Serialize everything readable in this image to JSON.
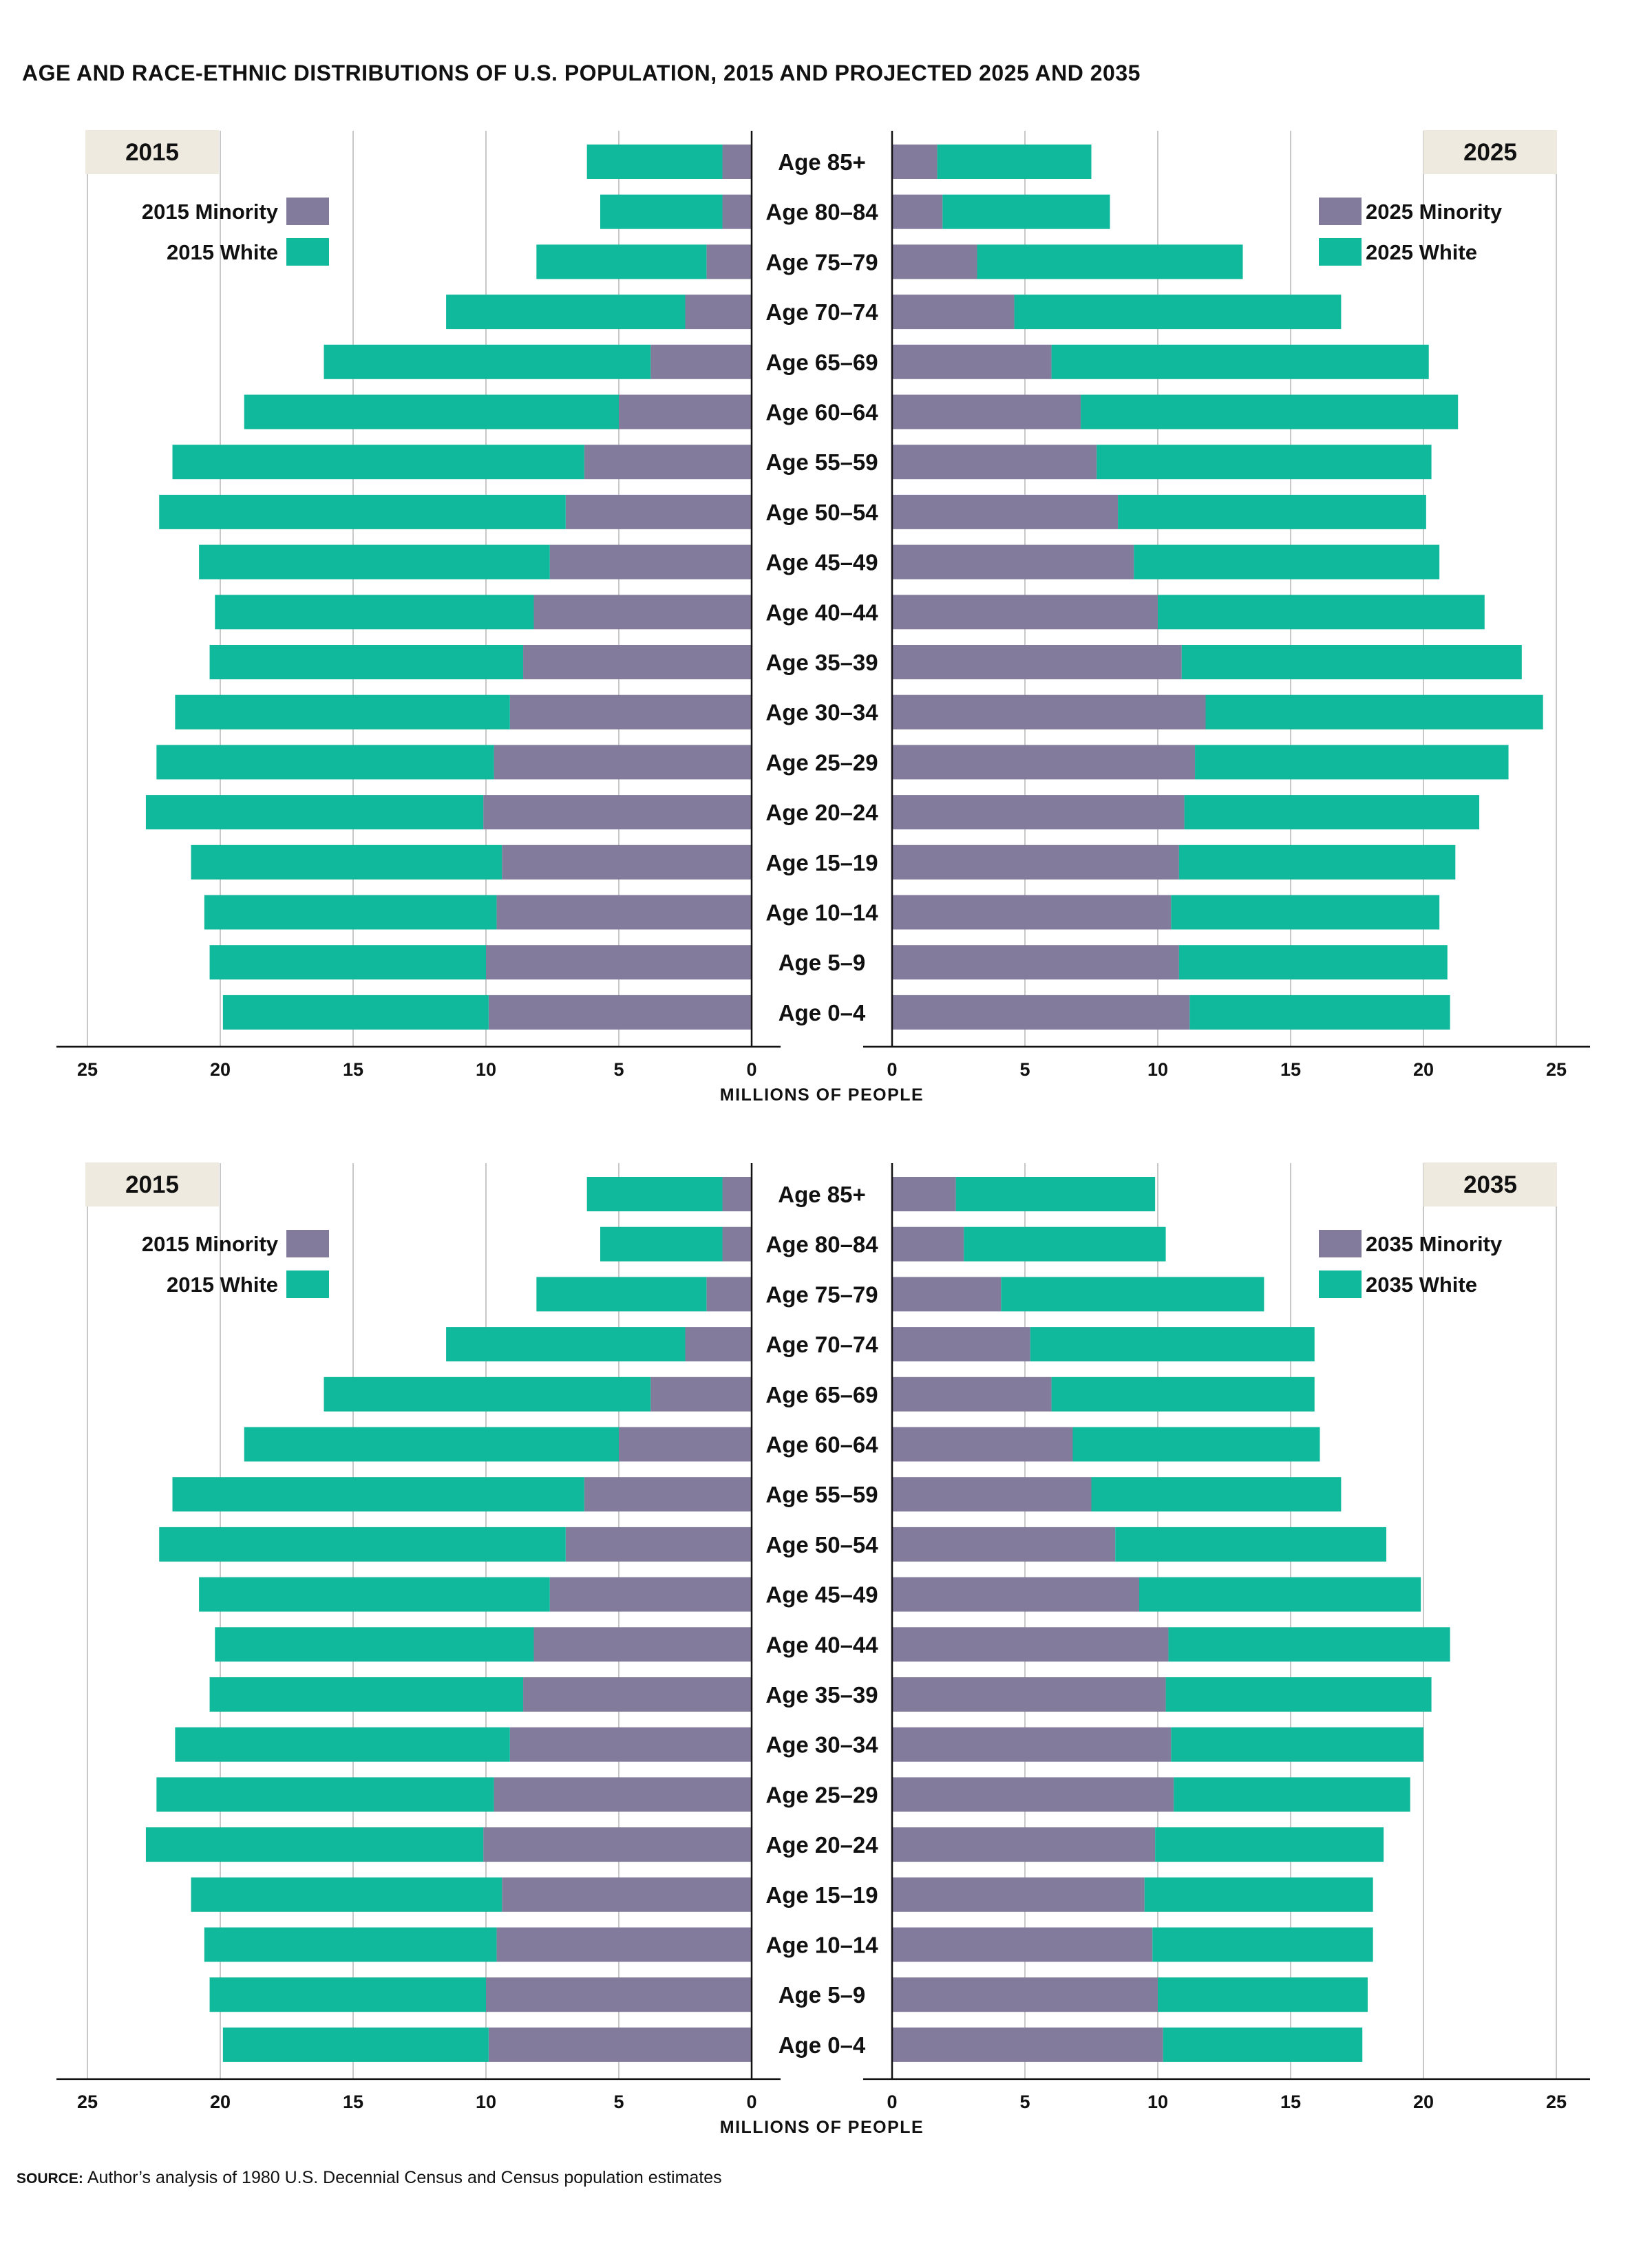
{
  "page": {
    "title": "AGE AND RACE-ETHNIC DISTRIBUTIONS OF U.S. POPULATION, 2015 AND PROJECTED 2025 AND 2035",
    "source_label": "SOURCE:",
    "source_text": "Author’s analysis of 1980 U.S. Decennial Census and Census population estimates"
  },
  "colors": {
    "minority": "#837b9c",
    "white": "#10b99b",
    "year_box": "#efeae0",
    "grid": "#c8c8c8",
    "axis": "#111111"
  },
  "chart_data": [
    {
      "type": "bar",
      "orientation": "horizontal",
      "layout": "population-pyramid",
      "xlabel": "MILLIONS OF PEOPLE",
      "xlim": [
        0,
        25
      ],
      "xticks": [
        "0",
        "5",
        "10",
        "15",
        "20",
        "25"
      ],
      "categories": [
        "Age 85+",
        "Age 80-84",
        "Age 75-79",
        "Age 70-74",
        "Age 65-69",
        "Age 60-64",
        "Age 55-59",
        "Age 50-54",
        "Age 45-49",
        "Age 40-44",
        "Age 35-39",
        "Age 30-34",
        "Age 25-29",
        "Age 20-24",
        "Age 15-19",
        "Age 10-14",
        "Age 5-9",
        "Age 0-4"
      ],
      "left": {
        "year": "2015",
        "series": [
          {
            "name": "2015 Minority",
            "values": [
              1.1,
              1.1,
              1.7,
              2.5,
              3.8,
              5.0,
              6.3,
              7.0,
              7.6,
              8.2,
              8.6,
              9.1,
              9.7,
              10.1,
              9.4,
              9.6,
              10.0,
              9.9
            ]
          },
          {
            "name": "2015 White",
            "values": [
              5.1,
              4.6,
              6.4,
              9.0,
              12.3,
              14.1,
              15.5,
              15.3,
              13.2,
              12.0,
              11.8,
              12.6,
              12.7,
              12.7,
              11.7,
              11.0,
              10.4,
              10.0
            ]
          }
        ]
      },
      "right": {
        "year": "2025",
        "series": [
          {
            "name": "2025 Minority",
            "values": [
              1.7,
              1.9,
              3.2,
              4.6,
              6.0,
              7.1,
              7.7,
              8.5,
              9.1,
              10.0,
              10.9,
              11.8,
              11.4,
              11.0,
              10.8,
              10.5,
              10.8,
              11.2
            ]
          },
          {
            "name": "2025 White",
            "values": [
              5.8,
              6.3,
              10.0,
              12.3,
              14.2,
              14.2,
              12.6,
              11.6,
              11.5,
              12.3,
              12.8,
              12.7,
              11.8,
              11.1,
              10.4,
              10.1,
              10.1,
              9.8
            ]
          }
        ]
      }
    },
    {
      "type": "bar",
      "orientation": "horizontal",
      "layout": "population-pyramid",
      "xlabel": "MILLIONS OF PEOPLE",
      "xlim": [
        0,
        25
      ],
      "xticks": [
        "0",
        "5",
        "10",
        "15",
        "20",
        "25"
      ],
      "categories": [
        "Age 85+",
        "Age 80-84",
        "Age 75-79",
        "Age 70-74",
        "Age 65-69",
        "Age 60-64",
        "Age 55-59",
        "Age 50-54",
        "Age 45-49",
        "Age 40-44",
        "Age 35-39",
        "Age 30-34",
        "Age 25-29",
        "Age 20-24",
        "Age 15-19",
        "Age 10-14",
        "Age 5-9",
        "Age 0-4"
      ],
      "left": {
        "year": "2015",
        "series": [
          {
            "name": "2015 Minority",
            "values": [
              1.1,
              1.1,
              1.7,
              2.5,
              3.8,
              5.0,
              6.3,
              7.0,
              7.6,
              8.2,
              8.6,
              9.1,
              9.7,
              10.1,
              9.4,
              9.6,
              10.0,
              9.9
            ]
          },
          {
            "name": "2015 White",
            "values": [
              5.1,
              4.6,
              6.4,
              9.0,
              12.3,
              14.1,
              15.5,
              15.3,
              13.2,
              12.0,
              11.8,
              12.6,
              12.7,
              12.7,
              11.7,
              11.0,
              10.4,
              10.0
            ]
          }
        ]
      },
      "right": {
        "year": "2035",
        "series": [
          {
            "name": "2035 Minority",
            "values": [
              2.4,
              2.7,
              4.1,
              5.2,
              6.0,
              6.8,
              7.5,
              8.4,
              9.3,
              10.4,
              10.3,
              10.5,
              10.6,
              9.9,
              9.5,
              9.8,
              10.0,
              10.2
            ]
          },
          {
            "name": "2035 White",
            "values": [
              7.5,
              7.6,
              9.9,
              10.7,
              9.9,
              9.3,
              9.4,
              10.2,
              10.6,
              10.6,
              10.0,
              9.5,
              8.9,
              8.6,
              8.6,
              8.3,
              7.9,
              7.5
            ]
          }
        ]
      }
    }
  ]
}
